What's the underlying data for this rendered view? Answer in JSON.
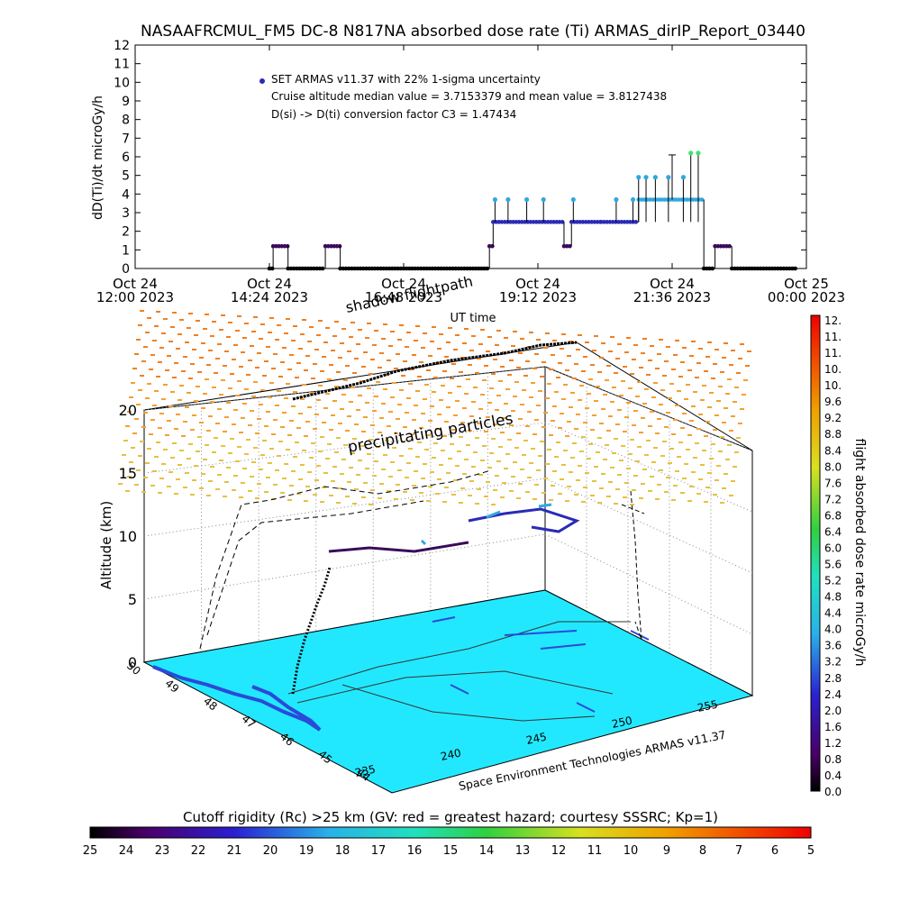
{
  "title": "NASAAFRCMUL_FM5 DC-8   N817NA absorbed dose rate (Ti) ARMAS_dirIP_Report_03440",
  "colors": {
    "series_low": "#3a0a5a",
    "series_mid": "#2a2ab8",
    "series_high": "#30a8e0",
    "series_top": "#40e070",
    "ground": "#22e8ff",
    "coast": "#2a4ad8"
  },
  "chart_data": [
    {
      "type": "scatter",
      "ylabel": "dD(Ti)/dt microGy/h",
      "xlabel": "UT time",
      "ylim": [
        0,
        12
      ],
      "yticks": [
        "0",
        "1",
        "2",
        "3",
        "4",
        "5",
        "6",
        "7",
        "8",
        "9",
        "10",
        "11",
        "12"
      ],
      "xticks": [
        {
          "day": "Oct 24",
          "time": "12:00 2023"
        },
        {
          "day": "Oct 24",
          "time": "14:24 2023"
        },
        {
          "day": "Oct 24",
          "time": "16:48 2023"
        },
        {
          "day": "Oct 24",
          "time": "19:12 2023"
        },
        {
          "day": "Oct 24",
          "time": "21:36 2023"
        },
        {
          "day": "Oct 25",
          "time": "00:00 2023"
        }
      ],
      "legend": [
        "SET ARMAS v11.37 with 22% 1-sigma uncertainty",
        "Cruise altitude median value = 3.7153379 and mean value = 3.8127438",
        "D(si) -> D(ti) conversion factor C3 = 1.47434"
      ],
      "segments": [
        {
          "from": "14:24",
          "to": "14:28",
          "value": 0
        },
        {
          "from": "14:28",
          "to": "14:44",
          "value": 1.2
        },
        {
          "from": "14:44",
          "to": "15:24",
          "value": 0
        },
        {
          "from": "15:24",
          "to": "15:40",
          "value": 1.2
        },
        {
          "from": "15:40",
          "to": "18:20",
          "value": 0
        },
        {
          "from": "18:20",
          "to": "18:24",
          "value": 1.2
        },
        {
          "from": "18:24",
          "to": "19:40",
          "value": 2.5
        },
        {
          "from": "19:40",
          "to": "19:48",
          "value": 1.2
        },
        {
          "from": "19:48",
          "to": "20:20",
          "value": 2.5
        },
        {
          "from": "20:20",
          "to": "21:00",
          "value": 2.5
        },
        {
          "from": "21:00",
          "to": "21:40",
          "value": 3.7
        },
        {
          "from": "21:40",
          "to": "22:10",
          "value": 3.7
        },
        {
          "from": "22:10",
          "to": "22:22",
          "value": 0
        },
        {
          "from": "22:22",
          "to": "22:40",
          "value": 1.2
        },
        {
          "from": "22:40",
          "to": "23:50",
          "value": 0
        }
      ],
      "points": [
        {
          "t": "18:26",
          "v": 3.7
        },
        {
          "t": "18:40",
          "v": 3.7
        },
        {
          "t": "19:00",
          "v": 3.7
        },
        {
          "t": "19:18",
          "v": 3.7
        },
        {
          "t": "19:50",
          "v": 3.7
        },
        {
          "t": "20:36",
          "v": 3.7
        },
        {
          "t": "20:54",
          "v": 3.7
        },
        {
          "t": "21:00",
          "v": 4.9
        },
        {
          "t": "21:08",
          "v": 4.9
        },
        {
          "t": "21:18",
          "v": 4.9
        },
        {
          "t": "21:32",
          "v": 4.9
        },
        {
          "t": "21:48",
          "v": 4.9
        },
        {
          "t": "21:56",
          "v": 6.2
        },
        {
          "t": "22:04",
          "v": 6.2
        }
      ]
    },
    {
      "type": "scatter",
      "title": "",
      "zlabel": "Altitude (km)",
      "zticks": [
        "0",
        "5",
        "10",
        "15",
        "20"
      ],
      "lat_ticks": [
        "50",
        "49",
        "48",
        "47",
        "46",
        "45",
        "44"
      ],
      "lon_ticks": [
        "235",
        "240",
        "245",
        "250",
        "255"
      ],
      "annotations": [
        "shadow flightpath",
        "precipitating particles",
        "Space Environment Technologies ARMAS v11.37"
      ],
      "colorbar_right": {
        "label": "flight absorbed dose rate microGy/h",
        "ticks": [
          "12.",
          "11.",
          "11.",
          "10.",
          "10.",
          "9.6",
          "9.2",
          "8.8",
          "8.4",
          "8.0",
          "7.6",
          "7.2",
          "6.8",
          "6.4",
          "6.0",
          "5.6",
          "5.2",
          "4.8",
          "4.4",
          "4.0",
          "3.6",
          "3.2",
          "2.8",
          "2.4",
          "2.0",
          "1.6",
          "1.2",
          "0.8",
          "0.4",
          "0.0"
        ]
      },
      "colorbar_bottom": {
        "label": "Cutoff rigidity (Rc) >25 km (GV: red = greatest hazard; courtesy SSSRC; Kp=1)",
        "ticks": [
          "25",
          "24",
          "23",
          "22",
          "21",
          "20",
          "19",
          "18",
          "17",
          "16",
          "15",
          "14",
          "13",
          "12",
          "11",
          "10",
          "9",
          "8",
          "7",
          "6",
          "5"
        ]
      }
    }
  ]
}
